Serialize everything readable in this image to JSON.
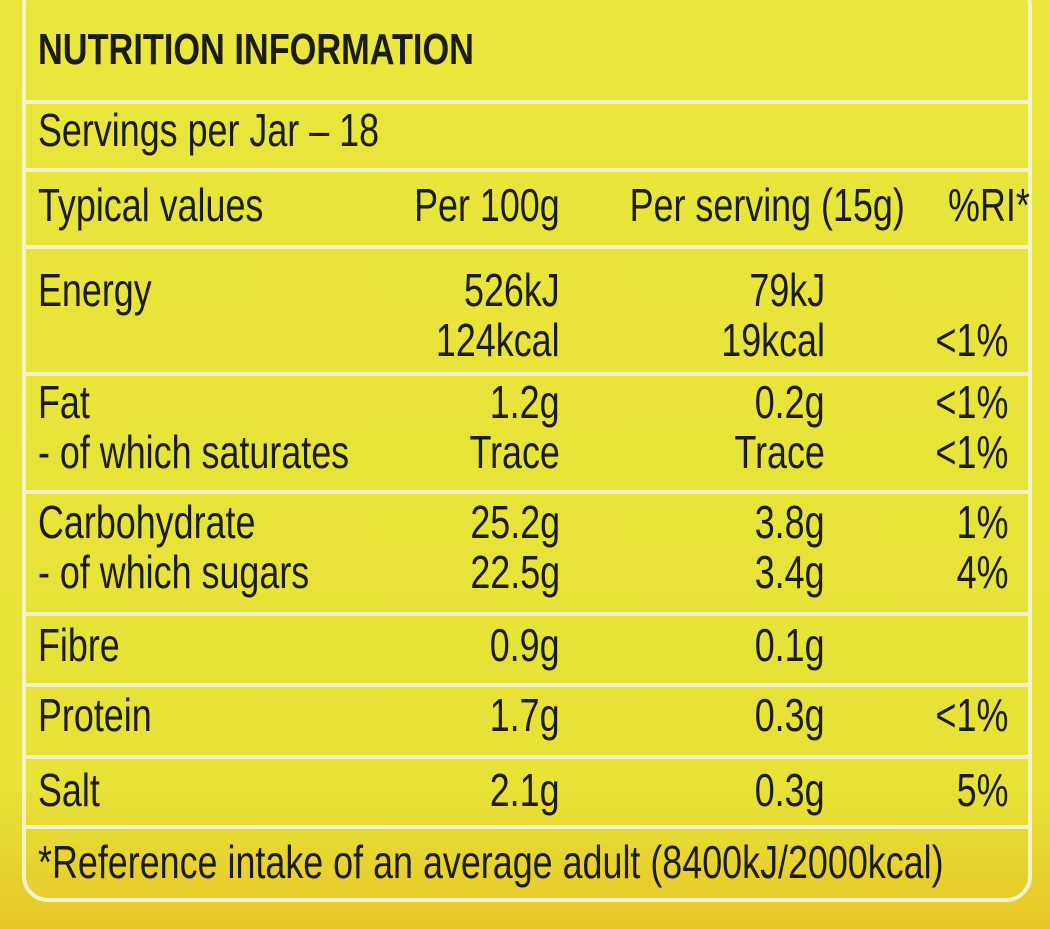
{
  "title": "NUTRITION INFORMATION",
  "servings": "Servings per Jar – 18",
  "table": {
    "header": [
      "Typical values",
      "Per 100g",
      "Per serving (15g)",
      "%RI*"
    ],
    "rows": [
      [
        [
          "Energy"
        ],
        [
          "526kJ",
          "124kcal"
        ],
        [
          "79kJ",
          "19kcal"
        ],
        [
          "<1%"
        ]
      ],
      [
        [
          "Fat",
          "- of which saturates"
        ],
        [
          "1.2g",
          "Trace"
        ],
        [
          "0.2g",
          "Trace"
        ],
        [
          "<1%",
          "<1%"
        ]
      ],
      [
        [
          "Carbohydrate",
          "- of which sugars"
        ],
        [
          "25.2g",
          "22.5g"
        ],
        [
          "3.8g",
          "3.4g"
        ],
        [
          "1%",
          "4%"
        ]
      ],
      [
        [
          "Fibre"
        ],
        [
          "0.9g"
        ],
        [
          "0.1g"
        ],
        []
      ],
      [
        [
          "Protein"
        ],
        [
          "1.7g"
        ],
        [
          "0.3g"
        ],
        [
          "<1%"
        ]
      ],
      [
        [
          "Salt"
        ],
        [
          "2.1g"
        ],
        [
          "0.3g"
        ],
        [
          "5%"
        ]
      ]
    ]
  },
  "footnote": "*Reference intake of an average adult (8400kJ/2000kcal)"
}
